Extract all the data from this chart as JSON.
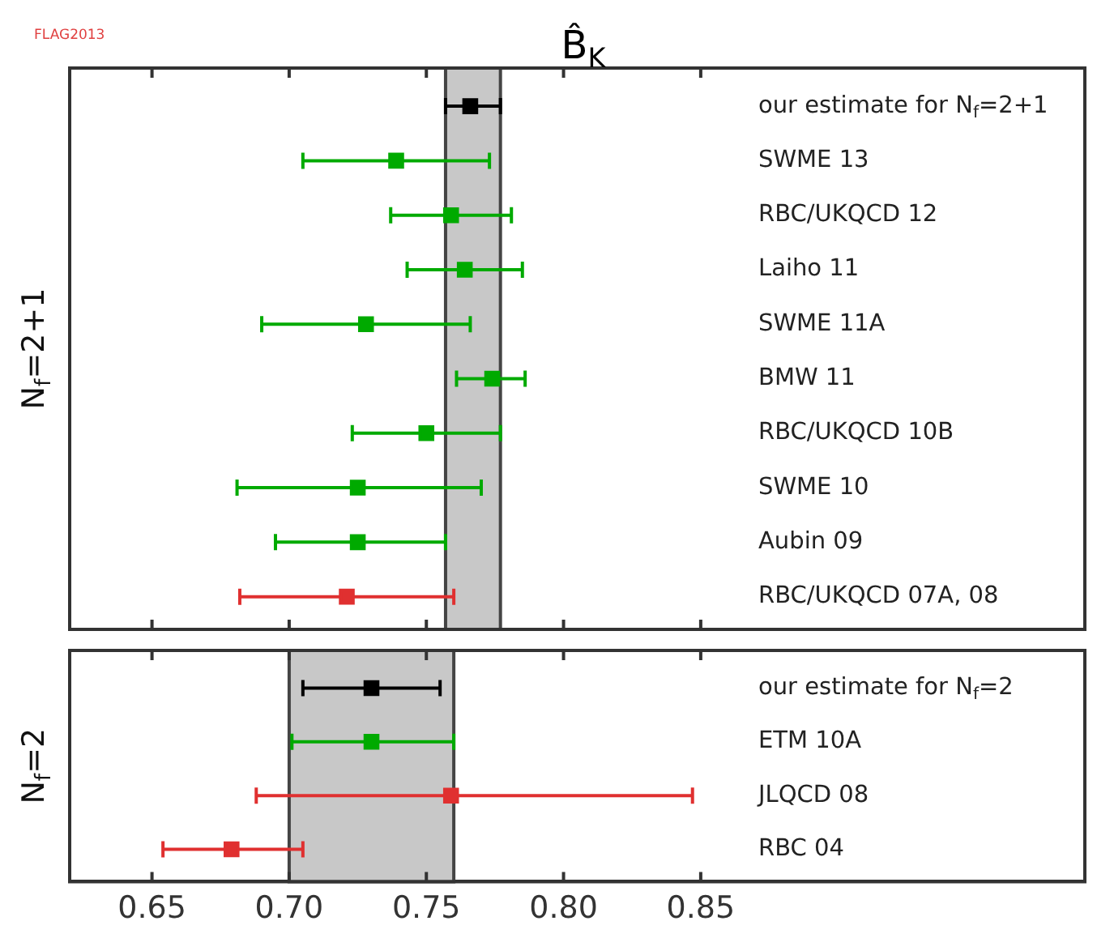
{
  "chart_data": [
    {
      "type": "scatter",
      "title": "B̂$_{K}$",
      "ylabel": "N$_{f}$=2+1",
      "annotations": [
        "FLAG2013"
      ],
      "orientation": "horizontal",
      "categories": [
        "our estimate for N$_{f}$=2+1",
        "SWME 13",
        "RBC/UKQCD 12",
        "Laiho 11",
        "SWME 11A",
        "BMW 11",
        "RBC/UKQCD 10B",
        "SWME 10",
        "Aubin 09",
        "RBC/UKQCD 07A, 08"
      ],
      "xlim": [
        0.62,
        0.99
      ],
      "xticks": [
        {
          "value": 0.65,
          "label": null
        },
        {
          "value": 0.7,
          "label": null
        },
        {
          "value": 0.75,
          "label": null
        },
        {
          "value": 0.8,
          "label": null
        },
        {
          "value": 0.85,
          "label": null
        }
      ],
      "tick_labels": "y",
      "grid": false,
      "legend": false,
      "marker": "square",
      "bands": [
        {
          "axis": "x",
          "from": 0.757,
          "to": 0.777,
          "color": "#c8c8c8"
        }
      ],
      "series": [
        {
          "color": "#000000",
          "values": [
            0.766,
            null,
            null,
            null,
            null,
            null,
            null,
            null,
            null,
            null
          ],
          "errors": [
            [
              0.757,
              0.777
            ],
            null,
            null,
            null,
            null,
            null,
            null,
            null,
            null,
            null
          ]
        },
        {
          "color": "#00aa00",
          "values": [
            null,
            0.739,
            0.759,
            0.764,
            null,
            0.774,
            null,
            null,
            null,
            null
          ],
          "errors": [
            null,
            [
              0.705,
              0.773
            ],
            [
              0.737,
              0.781
            ],
            [
              0.743,
              0.785
            ],
            null,
            [
              0.761,
              0.786
            ],
            null,
            null,
            null,
            null
          ]
        },
        {
          "color": "#00aa00",
          "values": [
            null,
            null,
            null,
            null,
            0.728,
            null,
            0.75,
            0.725,
            0.725,
            null
          ],
          "errors": [
            null,
            null,
            null,
            null,
            [
              0.69,
              0.766
            ],
            null,
            [
              0.723,
              0.777
            ],
            [
              0.681,
              0.77
            ],
            [
              0.695,
              0.757
            ],
            null
          ]
        },
        {
          "color": "#e03030",
          "values": [
            null,
            null,
            null,
            null,
            null,
            null,
            null,
            null,
            null,
            0.721
          ],
          "errors": [
            null,
            null,
            null,
            null,
            null,
            null,
            null,
            null,
            null,
            [
              0.682,
              0.76
            ]
          ]
        }
      ]
    },
    {
      "type": "scatter",
      "ylabel": "N$_{f}$=2",
      "orientation": "horizontal",
      "categories": [
        "our estimate for N$_{f}$=2",
        "ETM 10A",
        "JLQCD 08",
        "RBC 04"
      ],
      "xlim": [
        0.62,
        0.99
      ],
      "xticks": [
        0.65,
        {
          "value": 0.7,
          "label": "0.70"
        },
        0.75,
        {
          "value": 0.8,
          "label": "0.80"
        },
        0.85
      ],
      "grid": false,
      "legend": false,
      "marker": "square",
      "bands": [
        {
          "axis": "x",
          "from": 0.7,
          "to": 0.76,
          "color": "#c8c8c8"
        }
      ],
      "series": [
        {
          "color": "#000000",
          "values": [
            0.73,
            null,
            null,
            null
          ],
          "errors": [
            [
              0.705,
              0.755
            ],
            null,
            null,
            null
          ]
        },
        {
          "color": "#00aa00",
          "values": [
            null,
            0.73,
            null,
            null
          ],
          "errors": [
            null,
            [
              0.701,
              0.76
            ],
            null,
            null
          ]
        },
        {
          "color": "#e03030",
          "values": [
            null,
            null,
            0.759,
            0.679
          ],
          "errors": [
            null,
            null,
            [
              0.688,
              0.847
            ],
            [
              0.654,
              0.705
            ]
          ]
        }
      ]
    }
  ]
}
